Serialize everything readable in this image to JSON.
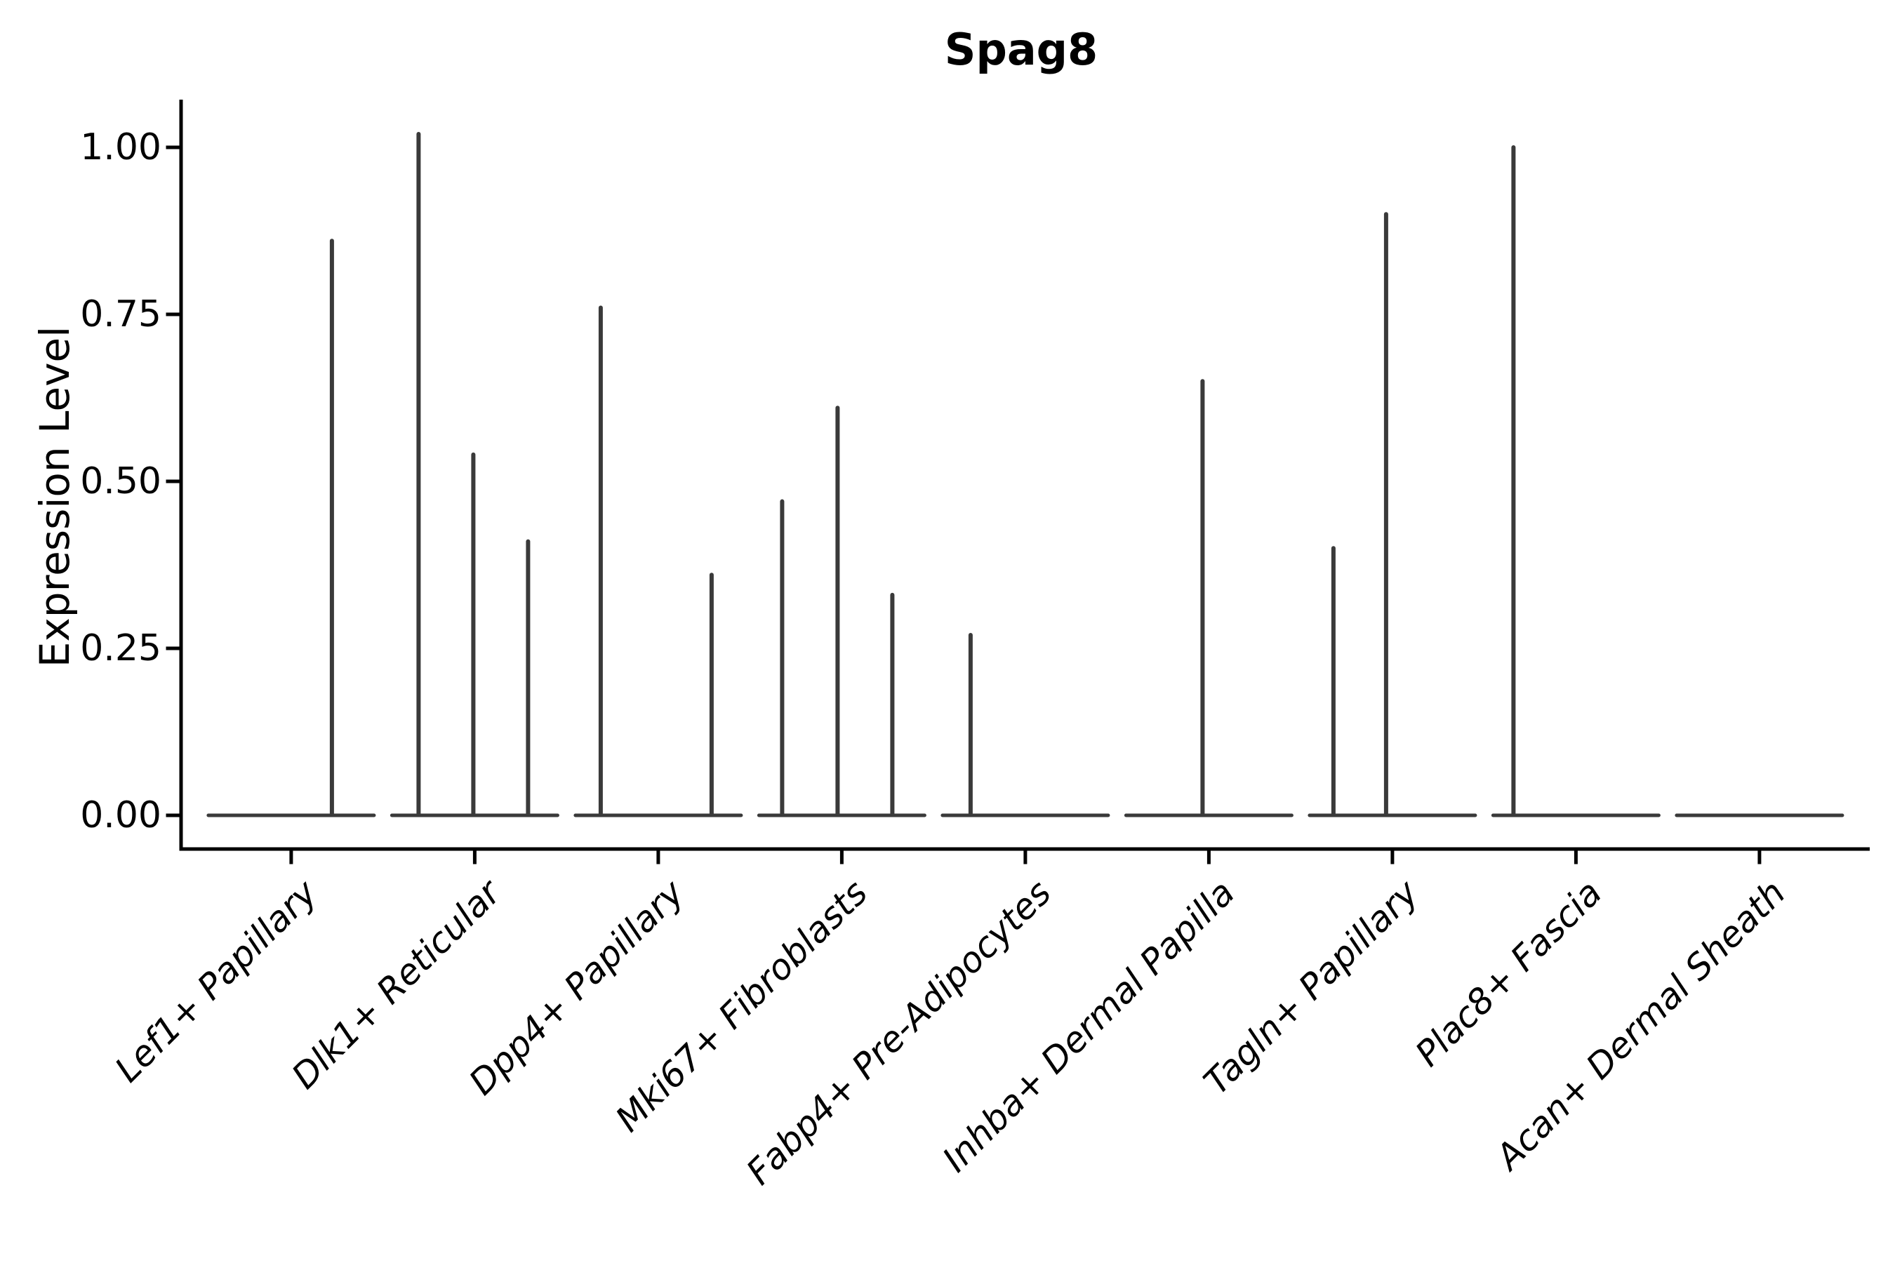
{
  "chart_data": {
    "type": "violin",
    "title": "Spag8",
    "xlabel": "",
    "ylabel": "Expression Level",
    "ylim": [
      0,
      1.07
    ],
    "grid": false,
    "legend": false,
    "y_ticks": [
      {
        "value": 0.0,
        "label": "0.00"
      },
      {
        "value": 0.25,
        "label": "0.25"
      },
      {
        "value": 0.5,
        "label": "0.50"
      },
      {
        "value": 0.75,
        "label": "0.75"
      },
      {
        "value": 1.0,
        "label": "1.00"
      }
    ],
    "categories": [
      "Lef1+ Papillary",
      "Dlk1+ Reticular",
      "Dpp4+ Papillary",
      "Mki67+ Fibroblasts",
      "Fabp4+ Pre-Adipocytes",
      "Inhba+ Dermal Papilla",
      "Tagln+ Papillary",
      "Plac8+ Fascia",
      "Acan+ Dermal Sheath"
    ],
    "violins": [
      {
        "category": "Lef1+ Papillary",
        "baseline_value": 0,
        "spikes": [
          {
            "dx": 58,
            "value": 0.86
          }
        ]
      },
      {
        "category": "Dlk1+ Reticular",
        "baseline_value": 0,
        "spikes": [
          {
            "dx": -80,
            "value": 1.02
          },
          {
            "dx": -2,
            "value": 0.54
          },
          {
            "dx": 76,
            "value": 0.41
          }
        ]
      },
      {
        "category": "Dpp4+ Papillary",
        "baseline_value": 0,
        "spikes": [
          {
            "dx": -82,
            "value": 0.76
          },
          {
            "dx": 76,
            "value": 0.36
          }
        ]
      },
      {
        "category": "Mki67+ Fibroblasts",
        "baseline_value": 0,
        "spikes": [
          {
            "dx": -85,
            "value": 0.47
          },
          {
            "dx": -6,
            "value": 0.61
          },
          {
            "dx": 72,
            "value": 0.33
          }
        ]
      },
      {
        "category": "Fabp4+ Pre-Adipocytes",
        "baseline_value": 0,
        "spikes": [
          {
            "dx": -78,
            "value": 0.27
          }
        ]
      },
      {
        "category": "Inhba+ Dermal Papilla",
        "baseline_value": 0,
        "spikes": [
          {
            "dx": -9,
            "value": 0.65
          }
        ]
      },
      {
        "category": "Tagln+ Papillary",
        "baseline_value": 0,
        "spikes": [
          {
            "dx": -84,
            "value": 0.4
          },
          {
            "dx": -9,
            "value": 0.9
          }
        ]
      },
      {
        "category": "Plac8+ Fascia",
        "baseline_value": 0,
        "spikes": [
          {
            "dx": -89,
            "value": 1.0
          }
        ]
      },
      {
        "category": "Acan+ Dermal Sheath",
        "baseline_value": 0,
        "spikes": []
      }
    ],
    "colors": {
      "violin": "#3a3a3a",
      "axis": "#000000",
      "text": "#000000",
      "background": "#ffffff"
    }
  }
}
